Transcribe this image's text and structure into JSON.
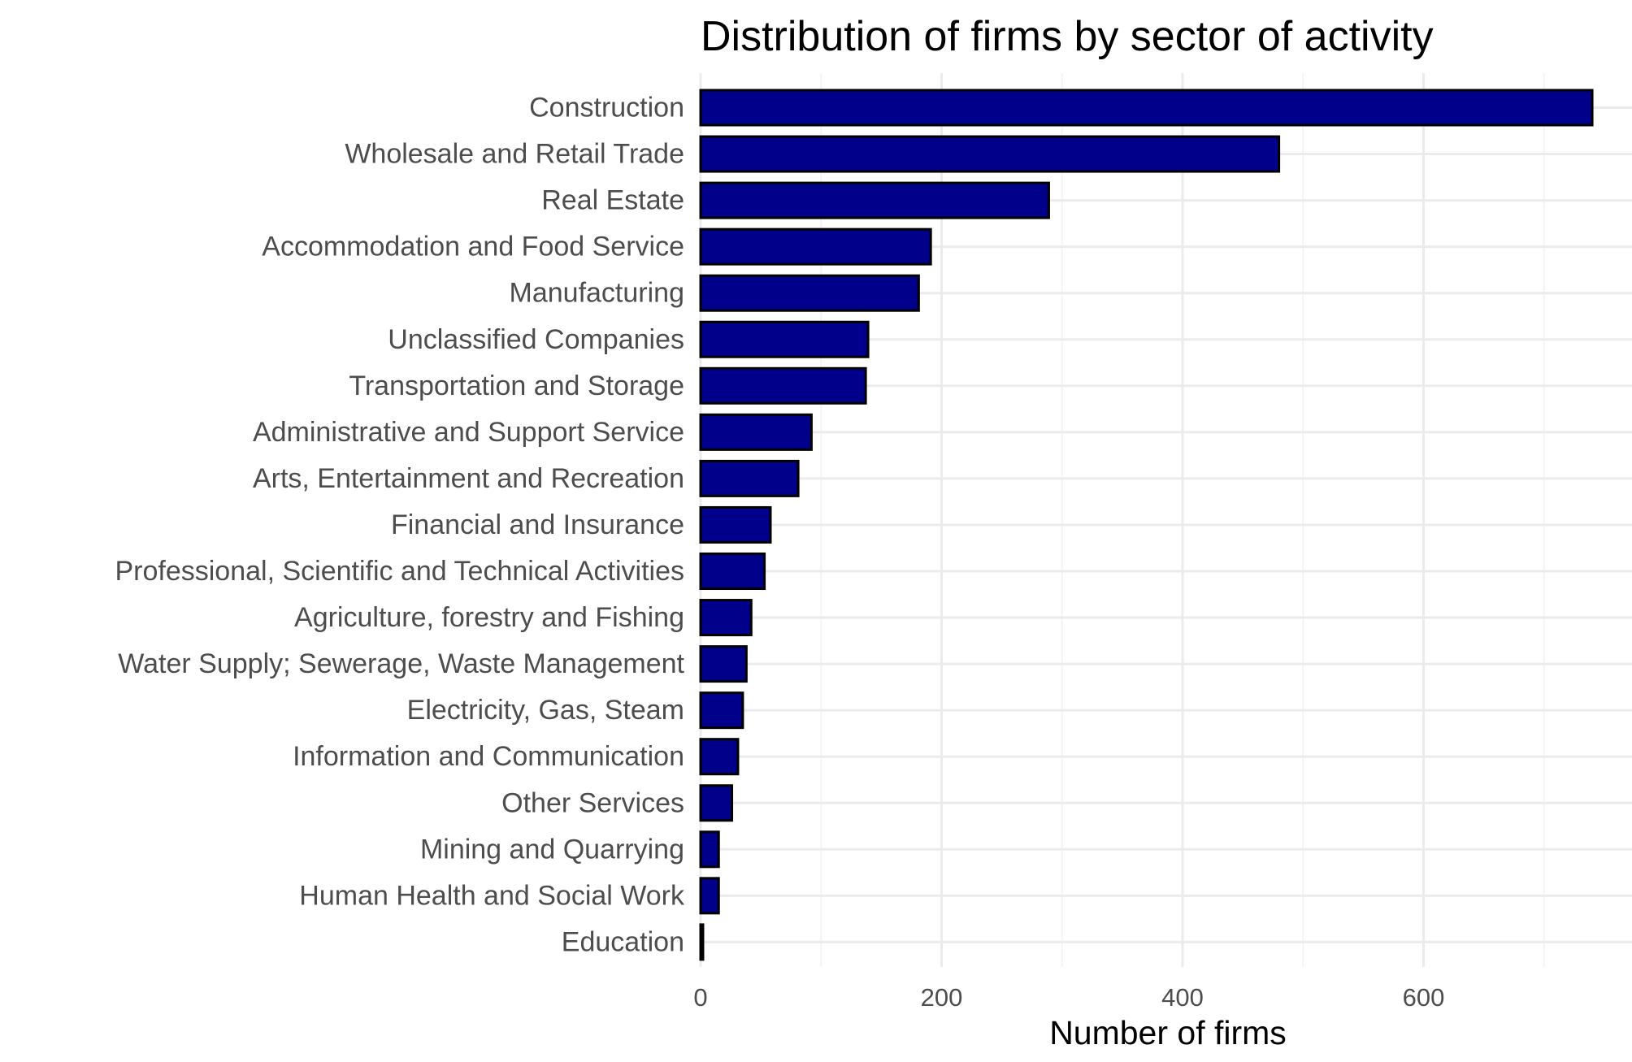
{
  "chart_data": {
    "type": "bar",
    "orientation": "horizontal",
    "title": "Distribution of firms by sector of activity",
    "xlabel": "Number of firms",
    "ylabel": "",
    "xlim": [
      0,
      775
    ],
    "x_ticks": [
      0,
      200,
      400,
      600
    ],
    "grid": true,
    "legend": "none",
    "bar_color": "#00008B",
    "bar_edge_color": "#000000",
    "categories": [
      "Construction",
      "Wholesale and Retail Trade",
      "Real Estate",
      "Accommodation and Food Service",
      "Manufacturing",
      "Unclassified Companies",
      "Transportation and Storage",
      "Administrative and Support Service",
      "Arts, Entertainment and Recreation",
      "Financial and Insurance",
      "Professional, Scientific and Technical Activities",
      "Agriculture, forestry and Fishing",
      "Water Supply; Sewerage, Waste Management",
      "Electricity, Gas, Steam",
      "Information and Communication",
      "Other Services",
      "Mining and Quarrying",
      "Human Health and Social Work",
      "Education"
    ],
    "values": [
      740,
      480,
      289,
      191,
      181,
      139,
      137,
      92,
      81,
      58,
      53,
      42,
      38,
      35,
      31,
      26,
      15,
      15,
      2
    ]
  }
}
